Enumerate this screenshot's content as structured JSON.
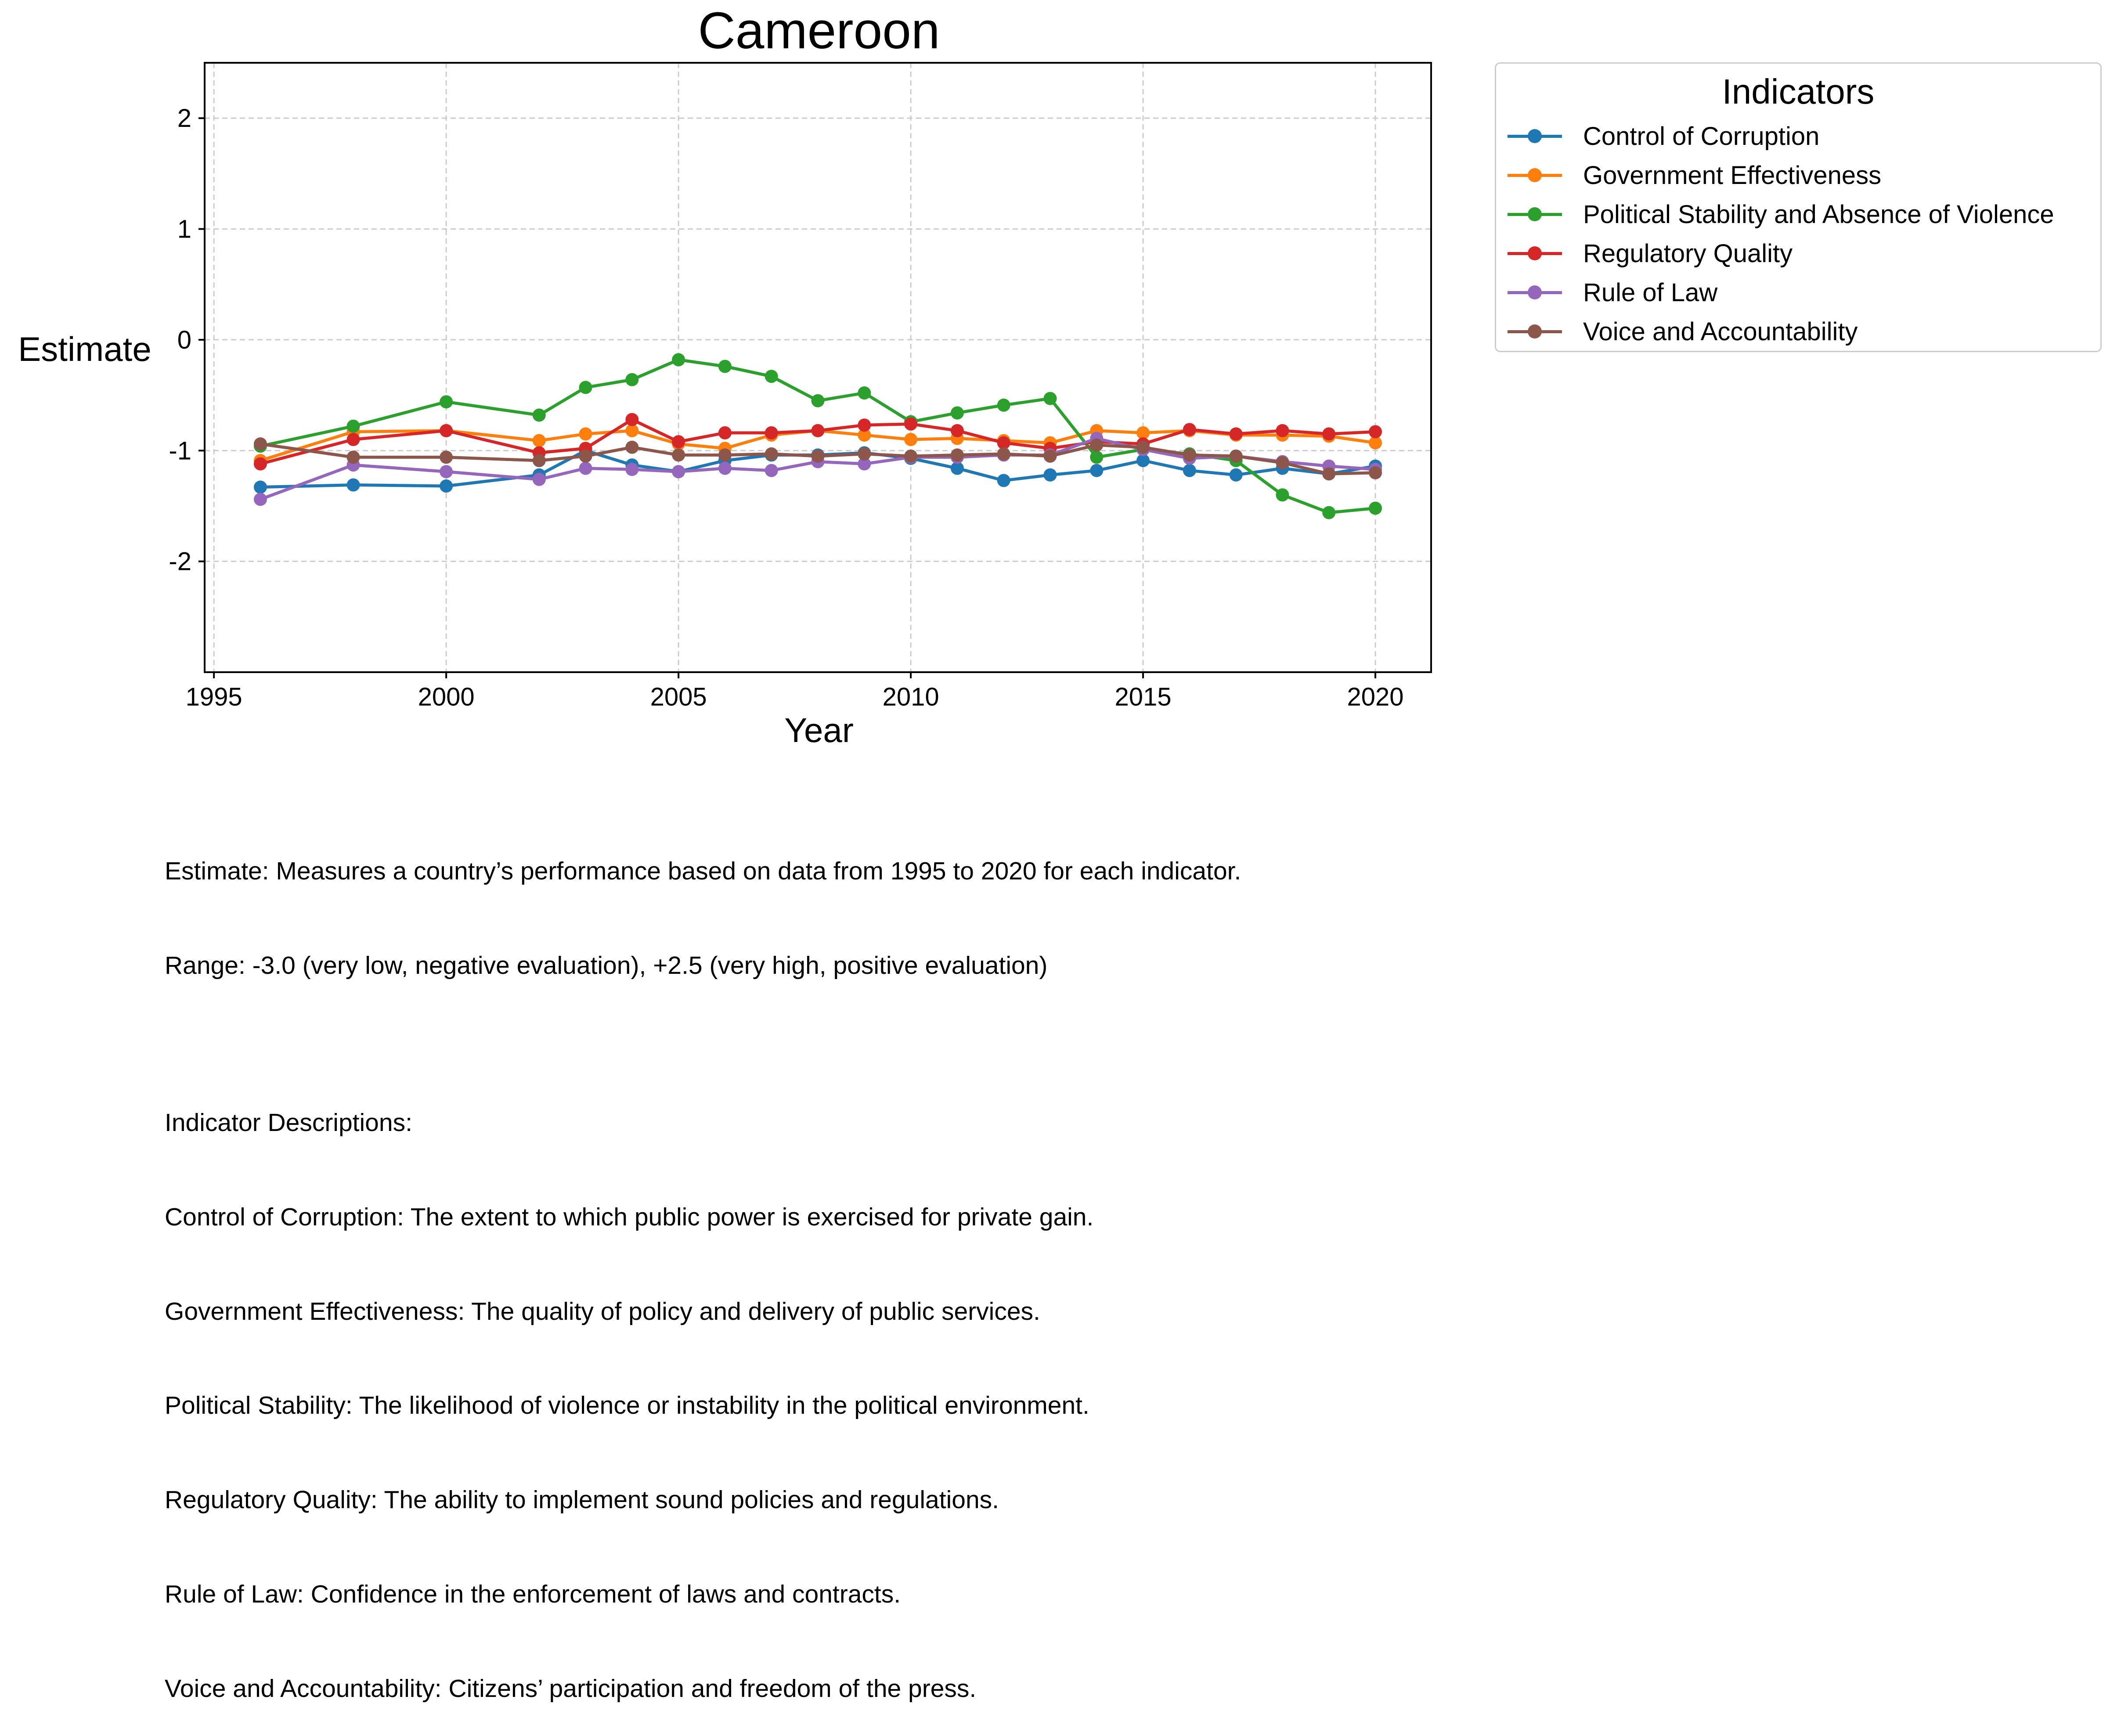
{
  "chart_data": {
    "type": "line",
    "title": "Cameroon",
    "xlabel": "Year",
    "ylabel": "Estimate",
    "xlim": [
      1994.8,
      2021.2
    ],
    "ylim": [
      -3.0,
      2.5
    ],
    "xticks": [
      1995,
      2000,
      2005,
      2010,
      2015,
      2020
    ],
    "xtick_labels": [
      "1995",
      "2000",
      "2005",
      "2010",
      "2015",
      "2020"
    ],
    "yticks": [
      2,
      1,
      0,
      -1,
      -2
    ],
    "ytick_labels": [
      "2",
      "1",
      "0",
      "-1",
      "-2"
    ],
    "grid": true,
    "legend_title": "Indicators",
    "legend_placement": "outside-right",
    "x": [
      1996,
      1998,
      2000,
      2002,
      2003,
      2004,
      2005,
      2006,
      2007,
      2008,
      2009,
      2010,
      2011,
      2012,
      2013,
      2014,
      2015,
      2016,
      2017,
      2018,
      2019,
      2020
    ],
    "series": [
      {
        "name": "Control of Corruption",
        "color": "#1f77b4",
        "values": [
          -1.33,
          -1.31,
          -1.32,
          -1.22,
          -1.0,
          -1.13,
          -1.19,
          -1.09,
          -1.04,
          -1.04,
          -1.02,
          -1.07,
          -1.16,
          -1.27,
          -1.22,
          -1.18,
          -1.09,
          -1.18,
          -1.22,
          -1.16,
          -1.21,
          -1.14
        ]
      },
      {
        "name": "Government Effectiveness",
        "color": "#ff7f0e",
        "values": [
          -1.09,
          -0.83,
          -0.82,
          -0.91,
          -0.85,
          -0.82,
          -0.94,
          -0.98,
          -0.86,
          -0.82,
          -0.86,
          -0.9,
          -0.89,
          -0.91,
          -0.93,
          -0.82,
          -0.84,
          -0.82,
          -0.86,
          -0.86,
          -0.87,
          -0.93
        ]
      },
      {
        "name": "Political Stability and Absence of Violence",
        "color": "#2ca02c",
        "values": [
          -0.96,
          -0.78,
          -0.56,
          -0.68,
          -0.43,
          -0.36,
          -0.18,
          -0.24,
          -0.33,
          -0.55,
          -0.48,
          -0.74,
          -0.66,
          -0.59,
          -0.53,
          -1.06,
          -0.99,
          -1.03,
          -1.09,
          -1.4,
          -1.56,
          -1.52
        ]
      },
      {
        "name": "Regulatory Quality",
        "color": "#d62728",
        "values": [
          -1.12,
          -0.9,
          -0.82,
          -1.02,
          -0.98,
          -0.72,
          -0.92,
          -0.84,
          -0.84,
          -0.82,
          -0.77,
          -0.76,
          -0.82,
          -0.93,
          -0.98,
          -0.92,
          -0.94,
          -0.81,
          -0.85,
          -0.82,
          -0.85,
          -0.83
        ]
      },
      {
        "name": "Rule of Law",
        "color": "#9467bd",
        "values": [
          -1.44,
          -1.13,
          -1.19,
          -1.26,
          -1.16,
          -1.17,
          -1.19,
          -1.16,
          -1.18,
          -1.1,
          -1.12,
          -1.06,
          -1.06,
          -1.04,
          -1.04,
          -0.89,
          -0.99,
          -1.07,
          -1.05,
          -1.1,
          -1.14,
          -1.17
        ]
      },
      {
        "name": "Voice and Accountability",
        "color": "#8c564b",
        "values": [
          -0.94,
          -1.06,
          -1.06,
          -1.09,
          -1.05,
          -0.97,
          -1.04,
          -1.04,
          -1.03,
          -1.05,
          -1.03,
          -1.05,
          -1.04,
          -1.03,
          -1.05,
          -0.95,
          -0.97,
          -1.04,
          -1.05,
          -1.11,
          -1.21,
          -1.2
        ]
      }
    ]
  },
  "caption": {
    "line1": "Estimate: Measures a country’s performance based on data from 1995 to 2020 for each indicator.",
    "line2": "Range: -3.0 (very low, negative evaluation), +2.5 (very high, positive evaluation)",
    "line3": "",
    "line4": "Indicator Descriptions:",
    "line5": "Control of Corruption: The extent to which public power is exercised for private gain.",
    "line6": "Government Effectiveness: The quality of policy and delivery of public services.",
    "line7": "Political Stability: The likelihood of violence or instability in the political environment.",
    "line8": "Regulatory Quality: The ability to implement sound policies and regulations.",
    "line9": "Rule of Law: Confidence in the enforcement of laws and contracts.",
    "line10": "Voice and Accountability: Citizens’ participation and freedom of the press."
  }
}
